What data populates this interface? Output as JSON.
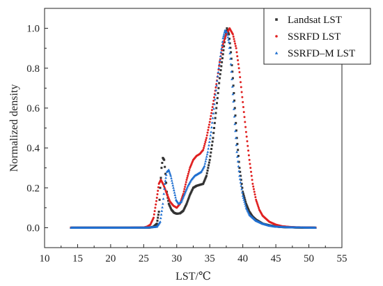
{
  "chart_data": {
    "type": "scatter",
    "xlabel": "LST/℃",
    "ylabel": "Normalized density",
    "xlim": [
      10,
      55
    ],
    "ylim": [
      -0.1,
      1.1
    ],
    "x_ticks": [
      10,
      15,
      20,
      25,
      30,
      35,
      40,
      45,
      50,
      55
    ],
    "y_ticks": [
      0.0,
      0.2,
      0.4,
      0.6,
      0.8,
      1.0
    ],
    "y_tick_labels": [
      "0.0",
      "0.2",
      "0.4",
      "0.6",
      "0.8",
      "1.0"
    ],
    "grid": false,
    "legend_position": "top-right",
    "series": [
      {
        "name": "Landsat LST",
        "color": "#333333",
        "marker": "square",
        "points": [
          [
            14,
            0
          ],
          [
            18,
            0
          ],
          [
            22,
            0
          ],
          [
            25,
            0
          ],
          [
            26,
            0.001
          ],
          [
            26.5,
            0.005
          ],
          [
            27,
            0.02
          ],
          [
            27.3,
            0.08
          ],
          [
            27.5,
            0.2
          ],
          [
            27.7,
            0.3
          ],
          [
            27.9,
            0.35
          ],
          [
            28.1,
            0.34
          ],
          [
            28.3,
            0.27
          ],
          [
            28.5,
            0.18
          ],
          [
            28.8,
            0.12
          ],
          [
            29.2,
            0.09
          ],
          [
            29.6,
            0.075
          ],
          [
            30,
            0.07
          ],
          [
            30.5,
            0.072
          ],
          [
            31,
            0.085
          ],
          [
            31.5,
            0.12
          ],
          [
            32,
            0.165
          ],
          [
            32.5,
            0.2
          ],
          [
            33,
            0.21
          ],
          [
            33.5,
            0.215
          ],
          [
            34,
            0.22
          ],
          [
            34.5,
            0.26
          ],
          [
            35,
            0.34
          ],
          [
            35.5,
            0.45
          ],
          [
            36,
            0.6
          ],
          [
            36.5,
            0.75
          ],
          [
            37,
            0.87
          ],
          [
            37.3,
            0.95
          ],
          [
            37.6,
            1.0
          ],
          [
            37.9,
            0.97
          ],
          [
            38.2,
            0.88
          ],
          [
            38.5,
            0.75
          ],
          [
            38.8,
            0.6
          ],
          [
            39.1,
            0.45
          ],
          [
            39.5,
            0.3
          ],
          [
            40,
            0.18
          ],
          [
            40.5,
            0.12
          ],
          [
            41,
            0.08
          ],
          [
            41.5,
            0.055
          ],
          [
            42,
            0.04
          ],
          [
            42.5,
            0.03
          ],
          [
            43,
            0.02
          ],
          [
            44,
            0.012
          ],
          [
            45,
            0.006
          ],
          [
            46,
            0.003
          ],
          [
            48,
            0.001
          ],
          [
            51,
            0
          ]
        ]
      },
      {
        "name": "SSRFD LST",
        "color": "#e02020",
        "marker": "circle",
        "points": [
          [
            14,
            0
          ],
          [
            18,
            0
          ],
          [
            22,
            0
          ],
          [
            25,
            0.001
          ],
          [
            25.5,
            0.005
          ],
          [
            26,
            0.015
          ],
          [
            26.5,
            0.05
          ],
          [
            27,
            0.15
          ],
          [
            27.3,
            0.22
          ],
          [
            27.6,
            0.24
          ],
          [
            28,
            0.215
          ],
          [
            28.5,
            0.17
          ],
          [
            29,
            0.13
          ],
          [
            29.5,
            0.11
          ],
          [
            30,
            0.1
          ],
          [
            30.5,
            0.12
          ],
          [
            31,
            0.17
          ],
          [
            31.5,
            0.24
          ],
          [
            32,
            0.3
          ],
          [
            32.5,
            0.34
          ],
          [
            33,
            0.36
          ],
          [
            33.5,
            0.37
          ],
          [
            34,
            0.39
          ],
          [
            34.5,
            0.45
          ],
          [
            35,
            0.53
          ],
          [
            35.5,
            0.62
          ],
          [
            36,
            0.72
          ],
          [
            36.5,
            0.83
          ],
          [
            37,
            0.92
          ],
          [
            37.5,
            0.97
          ],
          [
            38,
            1.0
          ],
          [
            38.5,
            0.97
          ],
          [
            39,
            0.9
          ],
          [
            39.5,
            0.78
          ],
          [
            40,
            0.63
          ],
          [
            40.5,
            0.48
          ],
          [
            41,
            0.34
          ],
          [
            41.5,
            0.22
          ],
          [
            42,
            0.14
          ],
          [
            42.5,
            0.09
          ],
          [
            43,
            0.06
          ],
          [
            44,
            0.03
          ],
          [
            45,
            0.015
          ],
          [
            46,
            0.007
          ],
          [
            47,
            0.004
          ],
          [
            48,
            0.002
          ],
          [
            50,
            0.001
          ],
          [
            51,
            0
          ]
        ]
      },
      {
        "name": "SSRFD–M LST",
        "color": "#1f6fd0",
        "marker": "triangle",
        "points": [
          [
            14,
            0
          ],
          [
            18,
            0
          ],
          [
            22,
            0
          ],
          [
            26,
            0.001
          ],
          [
            27,
            0.005
          ],
          [
            27.5,
            0.03
          ],
          [
            27.9,
            0.12
          ],
          [
            28.2,
            0.22
          ],
          [
            28.5,
            0.28
          ],
          [
            28.8,
            0.29
          ],
          [
            29.1,
            0.26
          ],
          [
            29.5,
            0.2
          ],
          [
            29.9,
            0.14
          ],
          [
            30.3,
            0.12
          ],
          [
            30.7,
            0.13
          ],
          [
            31.2,
            0.17
          ],
          [
            31.7,
            0.21
          ],
          [
            32.2,
            0.24
          ],
          [
            32.7,
            0.26
          ],
          [
            33.2,
            0.27
          ],
          [
            33.7,
            0.28
          ],
          [
            34.2,
            0.31
          ],
          [
            34.7,
            0.38
          ],
          [
            35.2,
            0.48
          ],
          [
            35.7,
            0.62
          ],
          [
            36.2,
            0.76
          ],
          [
            36.7,
            0.88
          ],
          [
            37,
            0.95
          ],
          [
            37.3,
            0.99
          ],
          [
            37.6,
            0.98
          ],
          [
            37.9,
            0.93
          ],
          [
            38.2,
            0.82
          ],
          [
            38.5,
            0.67
          ],
          [
            38.8,
            0.52
          ],
          [
            39.1,
            0.38
          ],
          [
            39.5,
            0.26
          ],
          [
            40,
            0.16
          ],
          [
            40.5,
            0.1
          ],
          [
            41,
            0.065
          ],
          [
            42,
            0.035
          ],
          [
            43,
            0.02
          ],
          [
            44,
            0.01
          ],
          [
            45,
            0.005
          ],
          [
            47,
            0.002
          ],
          [
            51,
            0
          ]
        ]
      }
    ]
  }
}
